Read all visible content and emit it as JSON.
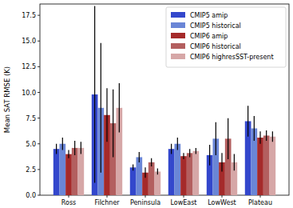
{
  "chart_data": {
    "type": "bar",
    "y_label": "Mean SAT RMSE (K)",
    "categories": [
      "Ross",
      "Filchner",
      "Peninsula",
      "LowEast",
      "LowWest",
      "Plateau"
    ],
    "series": [
      {
        "name": "CMIP5 amip",
        "color": "#3347cc",
        "values": [
          4.5,
          9.8,
          2.7,
          4.5,
          3.9,
          7.2
        ],
        "errors": [
          0.5,
          8.6,
          0.3,
          0.5,
          1.0,
          1.5
        ]
      },
      {
        "name": "CMIP5 historical",
        "color": "#6a86d6",
        "values": [
          5.0,
          8.5,
          3.7,
          5.0,
          5.5,
          6.5
        ],
        "errors": [
          0.6,
          6.3,
          0.5,
          0.6,
          1.6,
          1.2
        ]
      },
      {
        "name": "CMIP6 amip",
        "color": "#a52a2a",
        "values": [
          4.0,
          7.8,
          2.2,
          3.8,
          3.2,
          5.6
        ],
        "errors": [
          0.4,
          2.6,
          0.5,
          0.3,
          0.9,
          0.6
        ]
      },
      {
        "name": "CMIP6 historical",
        "color": "#b35f5f",
        "values": [
          4.6,
          7.0,
          3.2,
          4.1,
          5.5,
          5.8
        ],
        "errors": [
          0.7,
          3.3,
          0.4,
          0.4,
          2.0,
          0.5
        ]
      },
      {
        "name": "CMIP6 highresSST-present",
        "color": "#d6a7a7",
        "values": [
          4.6,
          8.5,
          2.3,
          4.3,
          3.2,
          5.7
        ],
        "errors": [
          0.6,
          2.4,
          0.3,
          0.3,
          0.8,
          0.5
        ]
      }
    ],
    "ylim": [
      0,
      18.6
    ],
    "yticks": [
      {
        "value": 0,
        "label": "0.0"
      },
      {
        "value": 2.5,
        "label": "2.5"
      },
      {
        "value": 5,
        "label": "5.0"
      },
      {
        "value": 7.5,
        "label": "7.5"
      },
      {
        "value": 10,
        "label": "10.0"
      },
      {
        "value": 12.5,
        "label": "12.5"
      },
      {
        "value": 15,
        "label": "15.0"
      },
      {
        "value": 17.5,
        "label": "17.5"
      }
    ],
    "grid": false,
    "legend": "upper right"
  }
}
